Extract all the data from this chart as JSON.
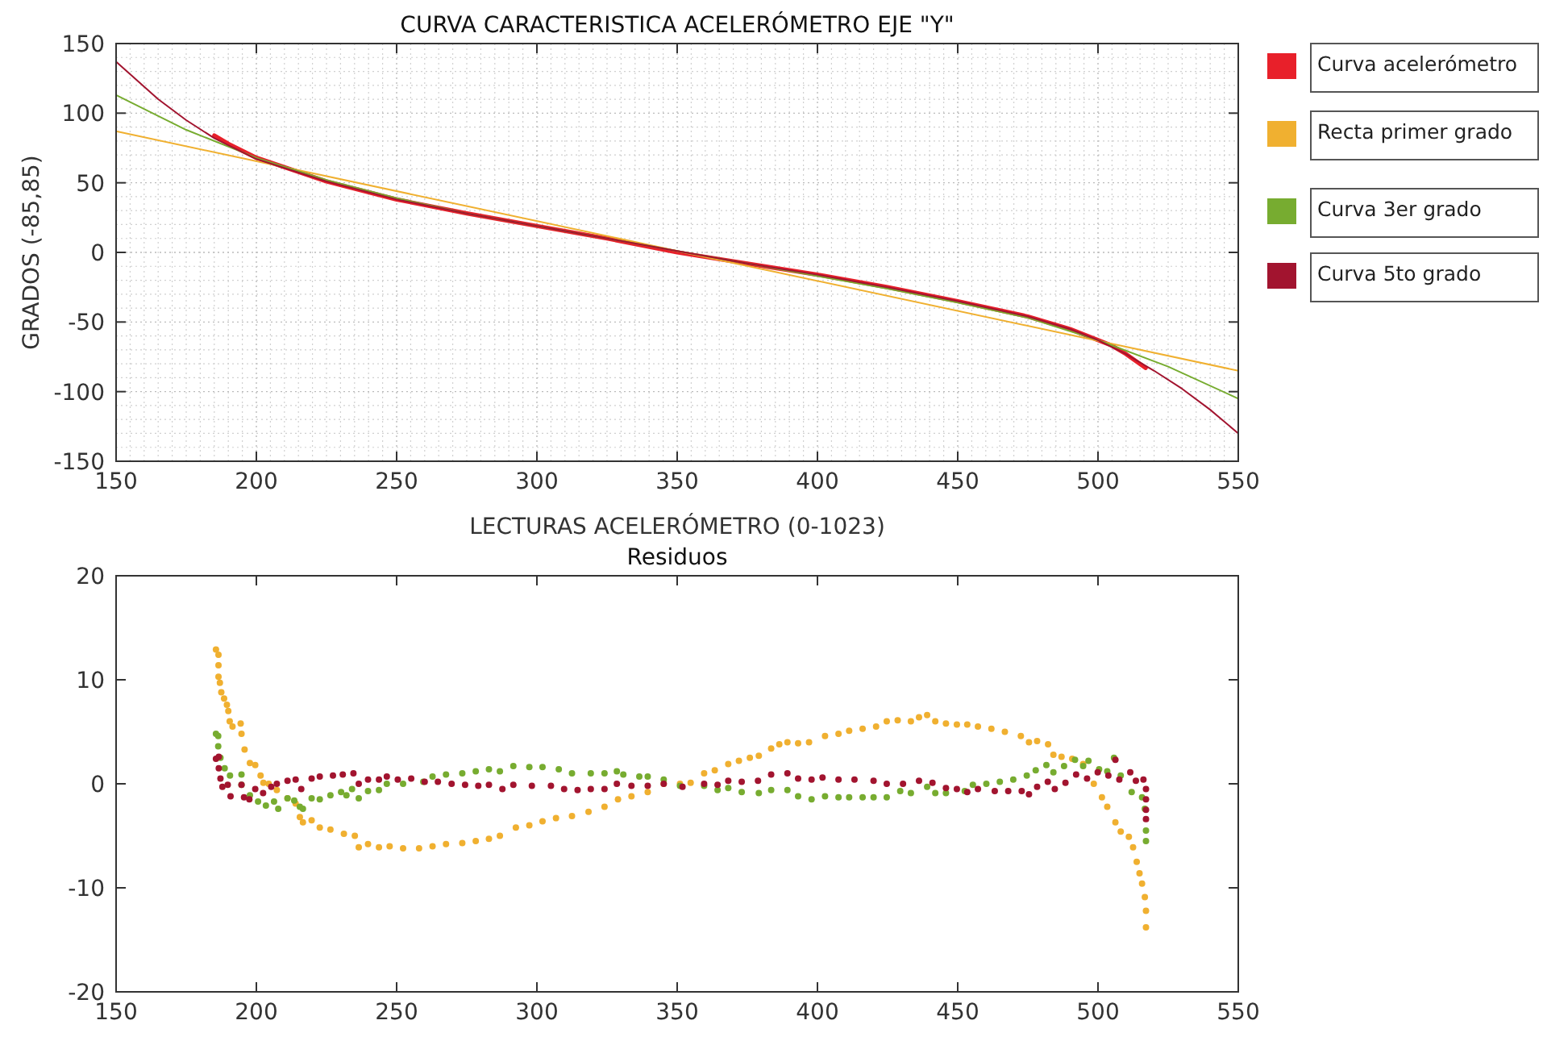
{
  "chart_data": [
    {
      "type": "line",
      "title": "CURVA CARACTERISTICA ACELERÓMETRO EJE \"Y\"",
      "xlabel": "LECTURAS ACELERÓMETRO (0-1023)",
      "ylabel": "GRADOS (-85,85)",
      "xlim": [
        150,
        550
      ],
      "ylim": [
        -150,
        150
      ],
      "xticks": [
        150,
        200,
        250,
        300,
        350,
        400,
        450,
        500,
        550
      ],
      "yticks": [
        -150,
        -100,
        -50,
        0,
        50,
        100,
        150
      ],
      "grid": true,
      "legend": "right",
      "marker": "none",
      "line_style": "solid",
      "series": [
        {
          "name": "Curva acelerómetro",
          "color": "#e8202a",
          "x": [
            185,
            190,
            200,
            225,
            250,
            275,
            300,
            325,
            350,
            375,
            400,
            425,
            450,
            475,
            490,
            500,
            505,
            510,
            517
          ],
          "values": [
            84,
            78,
            68,
            51,
            38,
            28,
            19,
            10,
            0,
            -8,
            -16,
            -25,
            -35,
            -46,
            -55,
            -63,
            -67,
            -73,
            -83
          ]
        },
        {
          "name": "Recta primer grado",
          "color": "#f0b030",
          "x": [
            150,
            550
          ],
          "values": [
            87,
            -85
          ]
        },
        {
          "name": "Curva 3er grado",
          "color": "#77ac30",
          "x": [
            150,
            175,
            200,
            225,
            250,
            275,
            300,
            325,
            350,
            375,
            400,
            425,
            450,
            475,
            500,
            525,
            550
          ],
          "values": [
            113,
            88,
            68,
            52,
            39,
            28,
            19,
            10,
            1,
            -8,
            -17,
            -26,
            -36,
            -47,
            -63,
            -82,
            -105
          ]
        },
        {
          "name": "Curva 5to grado",
          "color": "#a2142f",
          "x": [
            150,
            165,
            175,
            185,
            200,
            225,
            250,
            275,
            300,
            325,
            350,
            375,
            400,
            425,
            450,
            475,
            490,
            500,
            510,
            520,
            530,
            540,
            550
          ],
          "values": [
            137,
            110,
            95,
            82,
            67,
            51,
            38,
            28,
            19,
            10,
            1,
            -8,
            -16,
            -25,
            -35,
            -46,
            -55,
            -63,
            -73,
            -85,
            -98,
            -113,
            -130
          ]
        }
      ]
    },
    {
      "type": "scatter",
      "title": "Residuos",
      "xlim": [
        150,
        550
      ],
      "ylim": [
        -20,
        20
      ],
      "xticks": [
        150,
        200,
        250,
        300,
        350,
        400,
        450,
        500,
        550
      ],
      "yticks": [
        -20,
        -10,
        0,
        10,
        20
      ],
      "grid": false,
      "legend": false,
      "marker": "circle",
      "series": [
        {
          "color": "#f0b030",
          "x": [
            185.6,
            186.5,
            186.5,
            186.5,
            187,
            187.5,
            188.5,
            189.5,
            190,
            190.5,
            191.5,
            194.4,
            194.7,
            195.8,
            197.7,
            199.6,
            201.5,
            202.5,
            204.4,
            207.3,
            211.1,
            214,
            215.5,
            216.6,
            219.7,
            222.6,
            226.4,
            231.2,
            235.1,
            236.5,
            239.8,
            243.7,
            247.5,
            252.3,
            258,
            262.8,
            267.6,
            273.4,
            278.2,
            282.9,
            286.8,
            292.5,
            297.3,
            302,
            306.8,
            312.5,
            318.4,
            324.1,
            328.9,
            333.7,
            339.5,
            345.2,
            351,
            354.8,
            359.6,
            363.4,
            368.2,
            372,
            375.9,
            379.1,
            383.5,
            386.4,
            389.3,
            393.1,
            397,
            402.7,
            407.5,
            411.3,
            416.1,
            420.9,
            424.7,
            428.6,
            433.3,
            436.2,
            439.1,
            442,
            445.8,
            449.7,
            453.4,
            457.2,
            462,
            466.8,
            472.5,
            475.4,
            478.3,
            482.2,
            484.1,
            487,
            490.8,
            494.7,
            498.5,
            501.4,
            503.3,
            506.2,
            508.1,
            511,
            512.5,
            513.8,
            514.8,
            515.7,
            516.7,
            517.1,
            517.1
          ],
          "values": [
            12.9,
            12.4,
            11.4,
            10.3,
            9.7,
            8.8,
            8.2,
            7.6,
            7.0,
            6.0,
            5.5,
            5.8,
            4.8,
            3.3,
            2.0,
            1.8,
            0.8,
            0.1,
            0,
            -0.6,
            -1.4,
            -1.9,
            -3.2,
            -3.7,
            -3.5,
            -4.2,
            -4.4,
            -4.8,
            -5.0,
            -6.1,
            -5.8,
            -6.1,
            -6.0,
            -6.2,
            -6.2,
            -6.0,
            -5.8,
            -5.7,
            -5.5,
            -5.3,
            -5.0,
            -4.2,
            -4.0,
            -3.6,
            -3.3,
            -3.1,
            -2.7,
            -2.2,
            -1.5,
            -1.2,
            -0.8,
            0,
            0,
            0.1,
            1.0,
            1.3,
            1.9,
            2.2,
            2.5,
            2.7,
            3.4,
            3.8,
            4.0,
            3.9,
            4.0,
            4.6,
            4.8,
            5.1,
            5.3,
            5.5,
            6.0,
            6.1,
            6.0,
            6.4,
            6.6,
            6.0,
            5.8,
            5.7,
            5.7,
            5.5,
            5.3,
            5.0,
            4.6,
            4.0,
            4.1,
            3.8,
            2.8,
            2.6,
            2.4,
            1.9,
            0,
            -1.3,
            -2.2,
            -3.7,
            -4.6,
            -5.1,
            -6.1,
            -7.5,
            -8.6,
            -9.6,
            -10.9,
            -12.2,
            -13.8
          ]
        },
        {
          "color": "#77ac30",
          "x": [
            185.6,
            186.4,
            186.4,
            187.2,
            188.7,
            190.6,
            194.7,
            194.7,
            197.7,
            200.6,
            203.4,
            206.3,
            207.8,
            211.1,
            213.5,
            215.5,
            216.6,
            219.7,
            222.6,
            226.4,
            230.2,
            232.1,
            234.1,
            236.5,
            239.8,
            243.7,
            246.5,
            252.3,
            259.5,
            262.8,
            267.6,
            273.4,
            278.2,
            282.9,
            286.8,
            291.6,
            297.3,
            302,
            307.8,
            312.5,
            319.2,
            324.1,
            328.5,
            330.8,
            336.5,
            339.5,
            345.2,
            351,
            359.6,
            364.4,
            368.2,
            373,
            379.1,
            383.5,
            389.3,
            393.1,
            397.9,
            402.7,
            407.5,
            411.3,
            416.1,
            420,
            424.7,
            429.5,
            433.3,
            439.1,
            442,
            445.8,
            452.5,
            455.4,
            460.2,
            465,
            469.8,
            474.6,
            477.8,
            481.6,
            484.1,
            487.9,
            491.8,
            494.7,
            496.6,
            500.4,
            503.3,
            505.7,
            508.1,
            512,
            515.7,
            516.7,
            517.1,
            517.1
          ],
          "values": [
            4.8,
            4.6,
            3.6,
            2.5,
            1.5,
            0.8,
            0.9,
            -0.1,
            -1.1,
            -1.7,
            -2.1,
            -1.7,
            -2.4,
            -1.4,
            -1.6,
            -2.2,
            -2.4,
            -1.4,
            -1.5,
            -1.1,
            -0.8,
            -1.1,
            -0.5,
            -1.4,
            -0.7,
            -0.6,
            0,
            0,
            0.2,
            0.7,
            0.9,
            1.0,
            1.2,
            1.4,
            1.2,
            1.7,
            1.6,
            1.6,
            1.4,
            1.0,
            1.0,
            1.0,
            1.2,
            0.9,
            0.7,
            0.7,
            0.4,
            -0.2,
            -0.2,
            -0.6,
            -0.4,
            -0.8,
            -0.9,
            -0.6,
            -0.6,
            -1.2,
            -1.5,
            -1.2,
            -1.3,
            -1.3,
            -1.3,
            -1.3,
            -1.3,
            -0.7,
            -0.9,
            -0.3,
            -0.9,
            -0.9,
            -0.7,
            -0.1,
            0,
            0.2,
            0.4,
            0.8,
            1.3,
            1.8,
            1.1,
            1.7,
            2.3,
            1.7,
            2.2,
            1.4,
            1.2,
            2.5,
            0.8,
            -0.8,
            -1.3,
            -2.4,
            -4.5,
            -5.5
          ]
        },
        {
          "color": "#a2142f",
          "x": [
            185.6,
            186.6,
            186.6,
            187.2,
            187.9,
            189.8,
            190.8,
            194.7,
            195.6,
            197.5,
            199.6,
            202.4,
            205.3,
            207.3,
            211.1,
            214,
            216,
            219.7,
            222.6,
            227.3,
            230.8,
            234.6,
            236.5,
            239.8,
            243.7,
            246.5,
            250.4,
            255.2,
            260,
            264.7,
            269.6,
            274.4,
            279.1,
            282.9,
            287.7,
            291.6,
            298.2,
            305,
            309.7,
            314.5,
            319.2,
            324.1,
            328.5,
            333.7,
            339.5,
            345.2,
            351.9,
            359.6,
            364.4,
            368.2,
            373,
            378.8,
            383.5,
            389.3,
            393.1,
            397.9,
            401.8,
            407.5,
            413.2,
            420,
            424.7,
            430.5,
            436.2,
            441,
            445.8,
            449.7,
            453.4,
            457.2,
            463.2,
            468,
            472.8,
            475.4,
            478.3,
            482.1,
            484.6,
            488.4,
            492.2,
            496.1,
            499.9,
            503.7,
            506.2,
            507.6,
            511.5,
            513.5,
            516.2,
            517.1,
            517.1,
            517.1,
            517.1
          ],
          "values": [
            2.4,
            2.6,
            1.5,
            0.5,
            -0.3,
            -0.1,
            -1.2,
            -0.1,
            -1.3,
            -1.5,
            -0.5,
            -0.9,
            -0.3,
            0,
            0.3,
            0.4,
            -0.5,
            0.5,
            0.7,
            0.8,
            0.9,
            1.0,
            0,
            0.4,
            0.4,
            0.7,
            0.4,
            0.5,
            0.2,
            0.2,
            0,
            -0.1,
            -0.2,
            -0.1,
            -0.5,
            -0.1,
            -0.2,
            -0.2,
            -0.5,
            -0.6,
            -0.5,
            -0.5,
            0,
            -0.2,
            -0.2,
            0,
            -0.3,
            0,
            -0.1,
            0.3,
            0.2,
            0.3,
            0.9,
            1.0,
            0.5,
            0.4,
            0.6,
            0.4,
            0.4,
            0.3,
            0,
            0,
            0.3,
            0.1,
            -0.4,
            -0.5,
            -0.8,
            -0.5,
            -0.7,
            -0.7,
            -0.7,
            -1.0,
            -0.3,
            0.2,
            -0.5,
            0.1,
            0.9,
            0.5,
            1.1,
            0.8,
            2.3,
            0.4,
            1.1,
            0.3,
            0.4,
            -0.5,
            -1.5,
            -2.5,
            -3.4
          ]
        }
      ]
    }
  ]
}
